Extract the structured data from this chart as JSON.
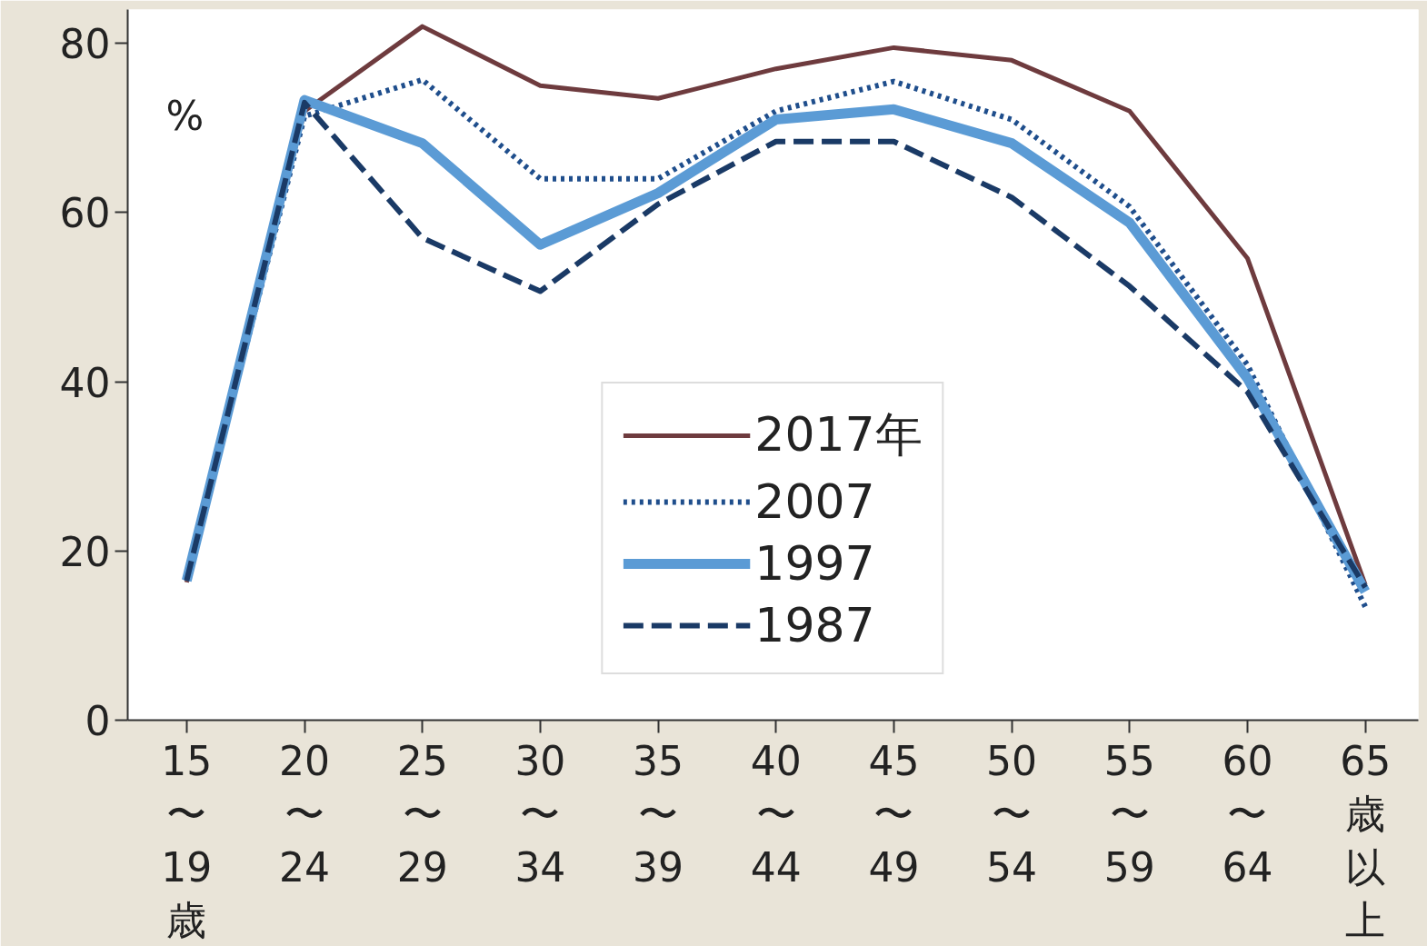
{
  "chart_data": {
    "type": "line",
    "ylabel": "%",
    "categories": [
      "15〜19歳",
      "20〜24",
      "25〜29",
      "30〜34",
      "35〜39",
      "40〜44",
      "45〜49",
      "50〜54",
      "55〜59",
      "60〜64",
      "65歳以上"
    ],
    "series": [
      {
        "name": "2017年",
        "color": "#6e3b3e",
        "line_style": "solid",
        "values": [
          16.3,
          72,
          82,
          75,
          73.5,
          77,
          79.5,
          78,
          72,
          54.6,
          16
        ]
      },
      {
        "name": "2007",
        "color": "#1f4e8c",
        "line_style": "dotted",
        "values": [
          16.5,
          71.4,
          75.7,
          64,
          64,
          72,
          75.5,
          71,
          60.7,
          42,
          13.4
        ]
      },
      {
        "name": "1997",
        "color": "#5b9bd5",
        "line_style": "solid",
        "values": [
          16.5,
          73.3,
          68.2,
          56.2,
          62.3,
          71,
          72.2,
          68.2,
          58.8,
          40.4,
          15.2
        ]
      },
      {
        "name": "1987",
        "color": "#1a3a66",
        "line_style": "dashed",
        "values": [
          16.5,
          73,
          57,
          50.7,
          61,
          68.4,
          68.4,
          61.8,
          51.3,
          38.8,
          15.7
        ]
      }
    ],
    "ylim": [
      0,
      84
    ],
    "yticks": [
      0,
      20,
      40,
      60,
      80
    ],
    "grid": false,
    "legend": "bottom",
    "marker": "none"
  }
}
